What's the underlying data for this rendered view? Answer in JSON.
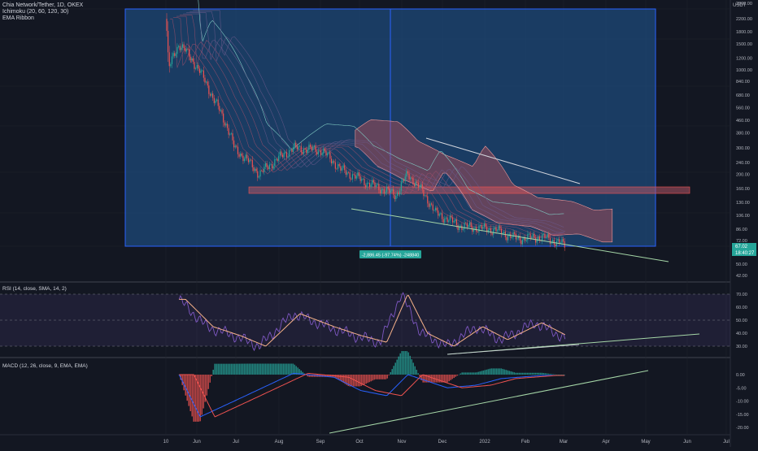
{
  "header": {
    "symbol": "Chia Network/Tether, 1D, OKEX",
    "ichimoku": "Ichimoku (20, 60, 120, 30)",
    "ema": "EMA Ribbon"
  },
  "price_scale": {
    "currency": "USDT",
    "ticks": [
      "2800.00",
      "2200.00",
      "1800.00",
      "1500.00",
      "1200.00",
      "1000.00",
      "840.00",
      "680.00",
      "560.00",
      "460.00",
      "380.00",
      "300.00",
      "240.00",
      "200.00",
      "160.00",
      "130.00",
      "106.00",
      "86.00",
      "72.00",
      "60.00",
      "50.00",
      "42.00"
    ],
    "last_price": "67.02",
    "countdown": "18:40:27"
  },
  "measure_label": "-2,886.45 (-97.74%) -248840",
  "rsi": {
    "label": "RSI (14, close, SMA, 14, 2)",
    "ticks": [
      "70.00",
      "60.00",
      "50.00",
      "40.00",
      "30.00"
    ]
  },
  "macd": {
    "label": "MACD (12, 26, close, 9, EMA, EMA)",
    "ticks": [
      "0.00",
      "-5.00",
      "-10.00",
      "-15.00",
      "-20.00"
    ]
  },
  "time_axis": [
    "10",
    "Jun",
    "Jul",
    "Aug",
    "Sep",
    "Oct",
    "Nov",
    "Dec",
    "2022",
    "Feb",
    "Mar",
    "Apr",
    "May",
    "Jun",
    "Jul"
  ],
  "colors": {
    "background": "#131722",
    "up": "#26a69a",
    "down": "#ef5350",
    "box_fill": "#1e4a7a",
    "box_border": "#2962ff",
    "cloud": "#ef5350",
    "trendline": "#a5d6a7",
    "rsi_band": "#7e57c2",
    "rsi_line": "#7e57c2",
    "rsi_ma": "#f7b28a",
    "macd_line": "#2962ff",
    "signal_line": "#ef5350"
  },
  "chart_data": {
    "type": "line",
    "symbol": "Chia Network/Tether",
    "interval": "1D",
    "exchange": "OKEX",
    "price_scale": "log",
    "ylim": [
      42,
      2800
    ],
    "price_path": [
      {
        "date": "2021-05-10",
        "price": 2200
      },
      {
        "date": "2021-05-12",
        "price": 1000
      },
      {
        "date": "2021-05-20",
        "price": 1500
      },
      {
        "date": "2021-06-01",
        "price": 1100
      },
      {
        "date": "2021-06-15",
        "price": 640
      },
      {
        "date": "2021-07-01",
        "price": 300
      },
      {
        "date": "2021-07-20",
        "price": 200
      },
      {
        "date": "2021-08-15",
        "price": 300
      },
      {
        "date": "2021-09-05",
        "price": 290
      },
      {
        "date": "2021-09-20",
        "price": 215
      },
      {
        "date": "2021-10-10",
        "price": 175
      },
      {
        "date": "2021-11-01",
        "price": 145
      },
      {
        "date": "2021-11-10",
        "price": 200
      },
      {
        "date": "2021-12-01",
        "price": 110
      },
      {
        "date": "2021-12-20",
        "price": 90
      },
      {
        "date": "2022-01-15",
        "price": 85
      },
      {
        "date": "2022-02-01",
        "price": 74
      },
      {
        "date": "2022-02-20",
        "price": 76
      },
      {
        "date": "2022-03-10",
        "price": 67
      }
    ],
    "rsi_range": [
      25,
      75
    ],
    "rsi_path": [
      {
        "date": "2021-05-20",
        "rsi": 66
      },
      {
        "date": "2021-06-10",
        "rsi": 45
      },
      {
        "date": "2021-07-01",
        "rsi": 38
      },
      {
        "date": "2021-07-20",
        "rsi": 30
      },
      {
        "date": "2021-08-15",
        "rsi": 55
      },
      {
        "date": "2021-09-10",
        "rsi": 45
      },
      {
        "date": "2021-10-01",
        "rsi": 38
      },
      {
        "date": "2021-10-20",
        "rsi": 33
      },
      {
        "date": "2021-11-05",
        "rsi": 70
      },
      {
        "date": "2021-11-20",
        "rsi": 40
      },
      {
        "date": "2021-12-10",
        "rsi": 30
      },
      {
        "date": "2022-01-01",
        "rsi": 45
      },
      {
        "date": "2022-01-20",
        "rsi": 35
      },
      {
        "date": "2022-02-15",
        "rsi": 48
      },
      {
        "date": "2022-03-10",
        "rsi": 36
      }
    ],
    "macd_range": [
      -22,
      6
    ],
    "macd_path": [
      {
        "date": "2021-05-20",
        "macd": 0
      },
      {
        "date": "2021-06-05",
        "macd": -16
      },
      {
        "date": "2021-07-01",
        "macd": -10
      },
      {
        "date": "2021-08-15",
        "macd": 0.5
      },
      {
        "date": "2021-09-15",
        "macd": -1
      },
      {
        "date": "2021-10-05",
        "macd": -6
      },
      {
        "date": "2021-10-25",
        "macd": -8
      },
      {
        "date": "2021-11-10",
        "macd": 0
      },
      {
        "date": "2021-12-10",
        "macd": -5
      },
      {
        "date": "2022-01-01",
        "macd": -4
      },
      {
        "date": "2022-01-20",
        "macd": -1.5
      },
      {
        "date": "2022-02-20",
        "macd": -0.3
      },
      {
        "date": "2022-03-10",
        "macd": -0.3
      }
    ]
  }
}
